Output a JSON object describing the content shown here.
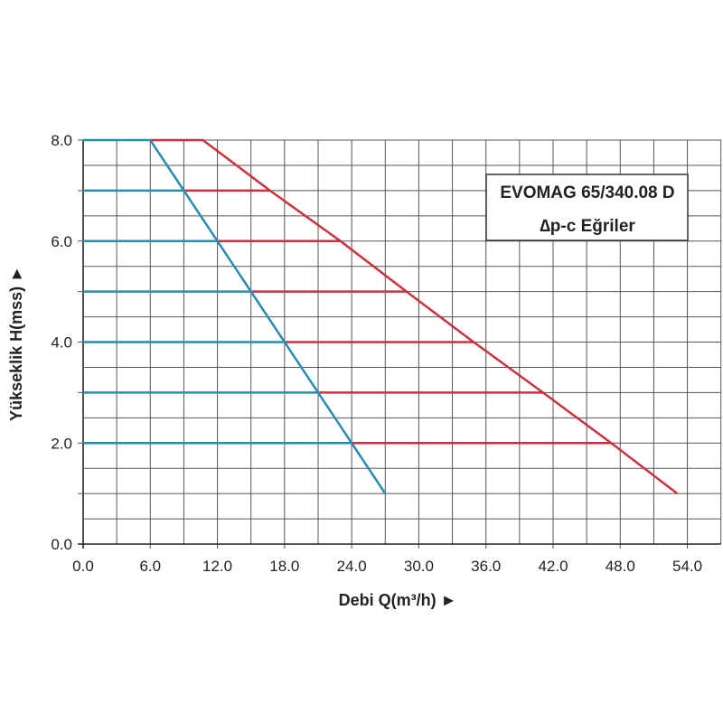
{
  "chart_data": {
    "type": "line",
    "title": "EVOMAG 65/340.08 D",
    "subtitle": "∆p-c Eğriler",
    "xlabel": "Debi Q(m³/h) ►",
    "ylabel": "Yükseklik H(mss) ►",
    "xlim": [
      0,
      57
    ],
    "ylim": [
      0,
      8
    ],
    "xticks": [
      "0.0",
      "6.0",
      "12.0",
      "18.0",
      "24.0",
      "30.0",
      "36.0",
      "42.0",
      "48.0",
      "54.0"
    ],
    "yticks": [
      "0.0",
      "2.0",
      "4.0",
      "6.0",
      "8.0"
    ],
    "grid": true,
    "series": [
      {
        "color": "#2a8db0",
        "points": [
          [
            0,
            8
          ],
          [
            6,
            8
          ],
          [
            9,
            7
          ],
          [
            12,
            6
          ],
          [
            15,
            5
          ],
          [
            18,
            4
          ],
          [
            21,
            3
          ],
          [
            24,
            2
          ],
          [
            27,
            1
          ]
        ]
      },
      {
        "color": "#c8323e",
        "points": [
          [
            6,
            8
          ],
          [
            10.7,
            8
          ],
          [
            16.7,
            7
          ],
          [
            23,
            6
          ],
          [
            28.9,
            5
          ],
          [
            34.9,
            4
          ],
          [
            41.1,
            3
          ],
          [
            47.2,
            2
          ],
          [
            53.1,
            1
          ]
        ]
      }
    ],
    "constant_pressure_lines": [
      {
        "H": 7,
        "q_min": 9,
        "q_max": 16.7
      },
      {
        "H": 6,
        "q_min": 12,
        "q_max": 23
      },
      {
        "H": 5,
        "q_min": 15,
        "q_max": 28.9
      },
      {
        "H": 4,
        "q_min": 18,
        "q_max": 34.9
      },
      {
        "H": 3,
        "q_min": 21,
        "q_max": 41.1
      },
      {
        "H": 2,
        "q_min": 24,
        "q_max": 47.2
      }
    ]
  }
}
